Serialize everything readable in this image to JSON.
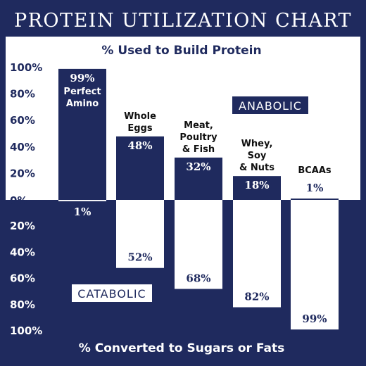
{
  "colors": {
    "navy": "#1f2a5e",
    "white": "#ffffff",
    "text": "#111111"
  },
  "chart_data": {
    "type": "bar",
    "title": "PROTEIN UTILIZATION CHART",
    "subtitle_top": "% Used to Build Protein",
    "subtitle_bottom": "% Converted to Sugars or Fats",
    "top_ticks": [
      "100%",
      "80%",
      "60%",
      "40%",
      "20%",
      "0%"
    ],
    "bottom_ticks": [
      "20%",
      "40%",
      "60%",
      "80%",
      "100%"
    ],
    "ylim_top": [
      0,
      100
    ],
    "ylim_bottom": [
      0,
      100
    ],
    "zone_labels": {
      "anabolic": "ANABOLIC",
      "catabolic": "CATABOLIC"
    },
    "categories": [
      {
        "label": [
          "Perfect",
          "Amino"
        ],
        "label_inside": true,
        "anabolic": 99,
        "catabolic": 1,
        "anabolic_text": "99%",
        "catabolic_text": "1%"
      },
      {
        "label": [
          "Whole",
          "Eggs"
        ],
        "label_inside": false,
        "anabolic": 48,
        "catabolic": 52,
        "anabolic_text": "48%",
        "catabolic_text": "52%"
      },
      {
        "label": [
          "Meat,",
          "Poultry",
          "& Fish"
        ],
        "label_inside": false,
        "anabolic": 32,
        "catabolic": 68,
        "anabolic_text": "32%",
        "catabolic_text": "68%"
      },
      {
        "label": [
          "Whey,",
          "Soy",
          "& Nuts"
        ],
        "label_inside": false,
        "anabolic": 18,
        "catabolic": 82,
        "anabolic_text": "18%",
        "catabolic_text": "82%"
      },
      {
        "label": [
          "BCAAs"
        ],
        "label_inside": false,
        "anabolic": 1,
        "catabolic": 99,
        "anabolic_text": "1%",
        "catabolic_text": "99%"
      }
    ]
  }
}
